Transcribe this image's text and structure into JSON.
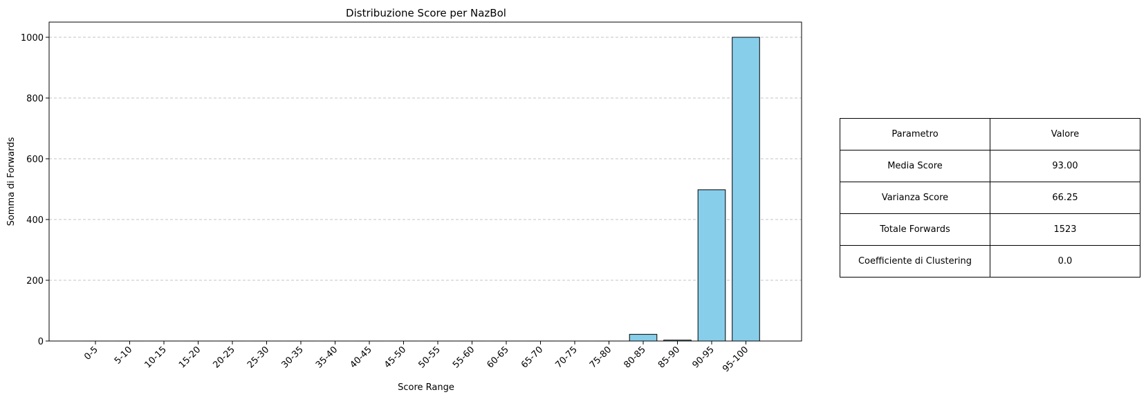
{
  "chart_data": {
    "type": "bar",
    "title": "Distribuzione Score per NazBol",
    "xlabel": "Score Range",
    "ylabel": "Somma di Forwards",
    "categories": [
      "0-5",
      "5-10",
      "10-15",
      "15-20",
      "20-25",
      "25-30",
      "30-35",
      "35-40",
      "40-45",
      "45-50",
      "50-55",
      "55-60",
      "60-65",
      "65-70",
      "70-75",
      "75-80",
      "80-85",
      "85-90",
      "90-95",
      "95-100"
    ],
    "values": [
      0,
      0,
      0,
      0,
      0,
      0,
      0,
      0,
      0,
      0,
      0,
      0,
      0,
      0,
      0,
      0,
      22,
      3,
      498,
      1000
    ],
    "ylim": [
      0,
      1050
    ],
    "yticks": [
      0,
      200,
      400,
      600,
      800,
      1000
    ],
    "grid": "y-dashed",
    "bar_color": "#87ceeb",
    "edge_color": "#000000"
  },
  "table": {
    "header": [
      "Parametro",
      "Valore"
    ],
    "rows": [
      [
        "Media Score",
        "93.00"
      ],
      [
        "Varianza Score",
        "66.25"
      ],
      [
        "Totale Forwards",
        "1523"
      ],
      [
        "Coefficiente di Clustering",
        "0.0"
      ]
    ]
  }
}
